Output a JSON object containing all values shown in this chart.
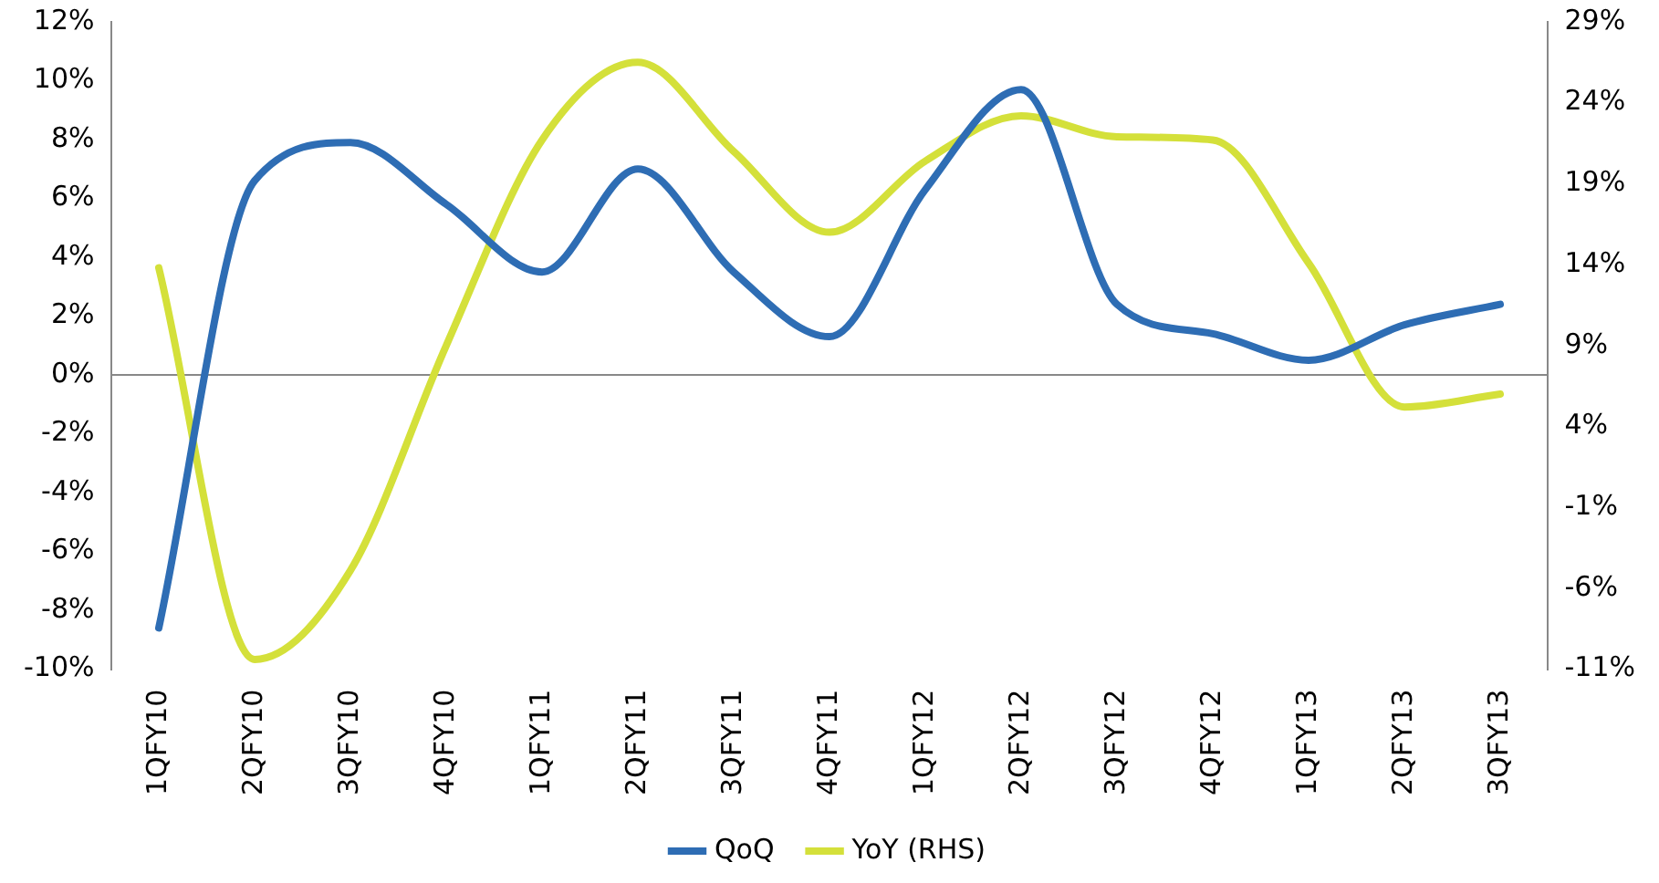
{
  "chart_data": {
    "type": "line",
    "categories": [
      "1QFY10",
      "2QFY10",
      "3QFY10",
      "4QFY10",
      "1QFY11",
      "2QFY11",
      "3QFY11",
      "4QFY11",
      "1QFY12",
      "2QFY12",
      "3QFY12",
      "4QFY12",
      "1QFY13",
      "2QFY13",
      "3QFY13"
    ],
    "series": [
      {
        "name": "QoQ",
        "color": "#2e6db4",
        "values": [
          -8.6,
          6.6,
          7.9,
          5.8,
          3.5,
          7.0,
          3.5,
          1.3,
          6.3,
          9.7,
          2.4,
          1.4,
          0.5,
          1.7,
          2.4
        ]
      },
      {
        "name": "YoY (RHS)",
        "color": "#d4e03a",
        "axis": "y2",
        "values": [
          13.8,
          -10.4,
          -4.9,
          9.0,
          21.7,
          26.5,
          21.0,
          16.0,
          20.4,
          23.2,
          21.9,
          21.7,
          14.1,
          5.2,
          6.0
        ]
      }
    ],
    "ylim": [
      -10,
      12
    ],
    "yticks": [
      {
        "value": -10,
        "label": "-10%"
      },
      {
        "value": -8,
        "label": "-8%"
      },
      {
        "value": -6,
        "label": "-6%"
      },
      {
        "value": -4,
        "label": "-4%"
      },
      {
        "value": -2,
        "label": "-2%"
      },
      {
        "value": 0,
        "label": "0%"
      },
      {
        "value": 2,
        "label": "2%"
      },
      {
        "value": 4,
        "label": "4%"
      },
      {
        "value": 6,
        "label": "6%"
      },
      {
        "value": 8,
        "label": "8%"
      },
      {
        "value": 10,
        "label": "10%"
      },
      {
        "value": 12,
        "label": "12%"
      }
    ],
    "y2lim": [
      -11,
      29
    ],
    "y2ticks": [
      {
        "value": -11,
        "label": "-11%"
      },
      {
        "value": -6,
        "label": "-6%"
      },
      {
        "value": -1,
        "label": "-1%"
      },
      {
        "value": 4,
        "label": "4%"
      },
      {
        "value": 9,
        "label": "9%"
      },
      {
        "value": 14,
        "label": "14%"
      },
      {
        "value": 19,
        "label": "19%"
      },
      {
        "value": 24,
        "label": "24%"
      },
      {
        "value": 29,
        "label": "29%"
      }
    ],
    "legend": "bottom",
    "marker": "none",
    "line_style": "solid"
  }
}
